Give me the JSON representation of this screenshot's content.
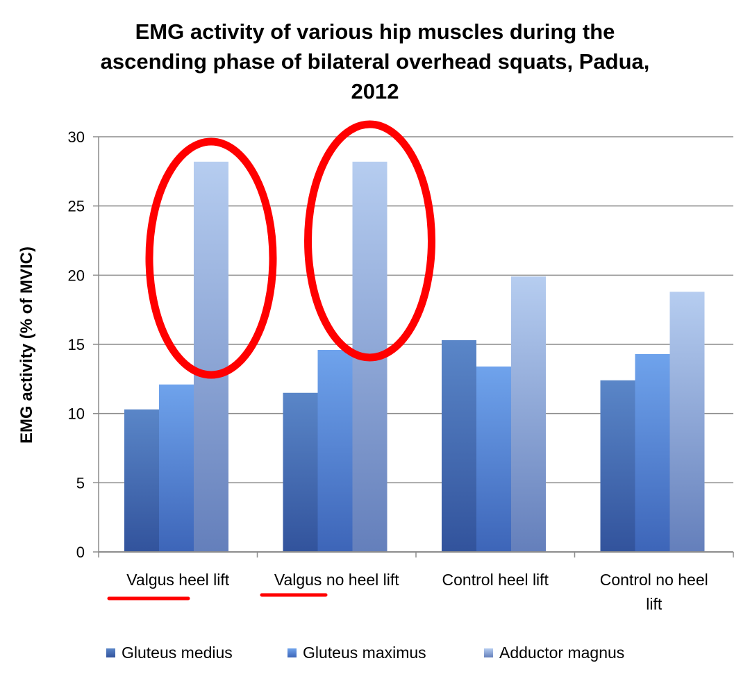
{
  "chart_data": {
    "type": "bar",
    "title_lines": [
      "EMG activity of various hip muscles during the",
      "ascending phase of bilateral overhead squats, Padua,",
      "2012"
    ],
    "xlabel": "",
    "ylabel": "EMG activity (% of MVIC)",
    "ylim": [
      0,
      30
    ],
    "yticks": [
      0,
      5,
      10,
      15,
      20,
      25,
      30
    ],
    "grid": true,
    "legend_position": "bottom",
    "categories": [
      [
        "Valgus heel lift"
      ],
      [
        "Valgus no heel lift"
      ],
      [
        "Control heel lift"
      ],
      [
        "Control no heel",
        "lift"
      ]
    ],
    "series": [
      {
        "name": "Gluteus medius",
        "color": "#5a86c8",
        "values": [
          10.3,
          11.5,
          15.3,
          12.4
        ]
      },
      {
        "name": "Gluteus maximus",
        "color": "#6fa3ec",
        "values": [
          12.1,
          14.6,
          13.4,
          14.3
        ]
      },
      {
        "name": "Adductor magnus",
        "color": "#b6cdf0",
        "values": [
          28.2,
          28.2,
          19.9,
          18.8
        ]
      }
    ],
    "annotations": [
      {
        "type": "ellipse",
        "color": "#ff0000",
        "target": "Valgus heel lift / Adductor magnus"
      },
      {
        "type": "ellipse",
        "color": "#ff0000",
        "target": "Valgus no heel lift / Adductor magnus"
      },
      {
        "type": "underline",
        "color": "#ff0000",
        "target": "Valgus"
      },
      {
        "type": "underline",
        "color": "#ff0000",
        "target": "Valgus"
      }
    ]
  }
}
